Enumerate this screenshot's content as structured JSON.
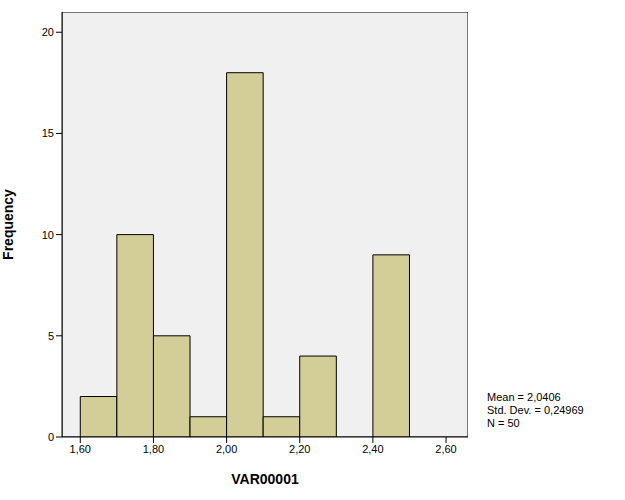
{
  "chart_data": {
    "type": "histogram",
    "x_label": "VAR00001",
    "y_label": "Frequency",
    "bins": [
      1.6,
      1.7,
      1.8,
      1.9,
      2.0,
      2.1,
      2.2,
      2.3,
      2.4,
      2.5
    ],
    "values": [
      2,
      10,
      5,
      1,
      18,
      1,
      4,
      0,
      9
    ],
    "color": "#d3ce98",
    "xlim": [
      1.55,
      2.66
    ],
    "xticks": [
      {
        "value": 1.6,
        "label": "1,60"
      },
      {
        "value": 1.8,
        "label": "1,80"
      },
      {
        "value": 2.0,
        "label": "2,00"
      },
      {
        "value": 2.2,
        "label": "2,20"
      },
      {
        "value": 2.4,
        "label": "2,40"
      },
      {
        "value": 2.6,
        "label": "2,60"
      }
    ],
    "ylim": [
      0,
      21
    ],
    "yticks": [
      0,
      5,
      10,
      15,
      20
    ],
    "grid": false,
    "annotations": [
      "Mean = 2,0406",
      "Std. Dev. = 0,24969",
      "N = 50"
    ]
  }
}
